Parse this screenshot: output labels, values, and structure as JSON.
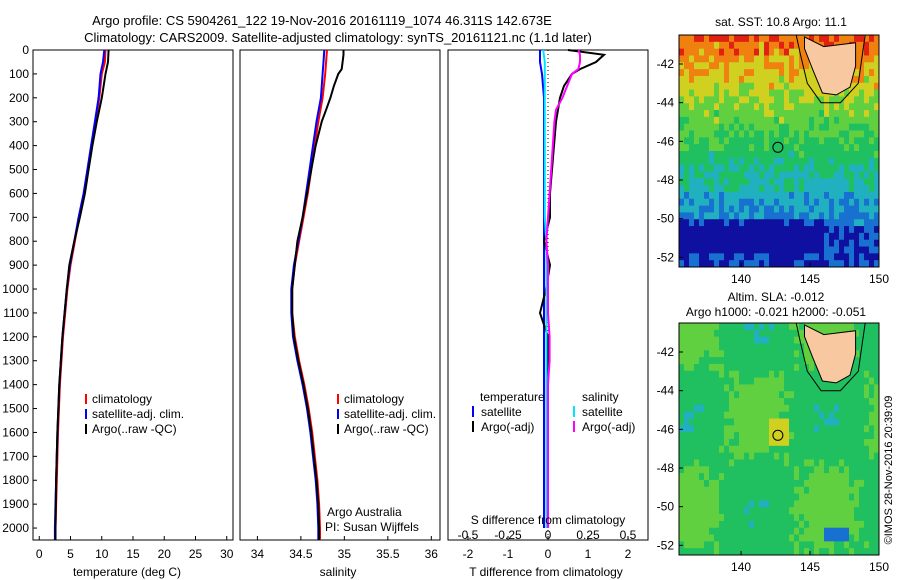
{
  "header": {
    "title_line1": "Argo profile: CS 5904261_122 19-Nov-2016 20161119_1074 46.311S 142.673E",
    "title_line2": "Climatology: CARS2009. Satellite-adjusted climatology: synTS_20161121.nc (1.1d later)"
  },
  "colors": {
    "climatology": "#ff0000",
    "satellite": "#0000ff",
    "argo": "#000000",
    "salinity_sat": "#00e5ff",
    "salinity_argo": "#ff00ff"
  },
  "depth_axis": {
    "range": [
      0,
      2050
    ],
    "ticks": [
      "0",
      "100",
      "200",
      "300",
      "400",
      "500",
      "600",
      "700",
      "800",
      "900",
      "1000",
      "1100",
      "1200",
      "1300",
      "1400",
      "1500",
      "1600",
      "1700",
      "1800",
      "1900",
      "2000"
    ]
  },
  "temp_panel": {
    "xlabel": "temperature (deg C)",
    "xlim": [
      -1,
      31
    ],
    "xticks": [
      "0",
      "5",
      "10",
      "15",
      "20",
      "25",
      "30"
    ],
    "legend": [
      "climatology",
      "satellite-adj. clim.",
      "Argo(..raw -QC)"
    ]
  },
  "sal_panel": {
    "xlabel": "salinity",
    "xlim": [
      33.8,
      36.1
    ],
    "xticks": [
      "34",
      "34.5",
      "35",
      "35.5",
      "36"
    ],
    "legend": [
      "climatology",
      "satellite-adj. clim.",
      "Argo(..raw -QC)"
    ],
    "annotation_line1": "Argo Australia",
    "annotation_line2": "PI: Susan Wijffels"
  },
  "diff_panel": {
    "xlabel_bottom": "T difference from climatology",
    "xlabel_top": "S difference from climatology",
    "xlim": [
      -2.5,
      2.5
    ],
    "xticks_bottom": [
      "-2",
      "-1",
      "0",
      "1",
      "2"
    ],
    "xticks_top": [
      "-0.5",
      "-0.25",
      "0",
      "0.25",
      "0.5"
    ],
    "legend_temp_title": "temperature",
    "legend_sal_title": "salinity",
    "legend_temp": [
      "satellite",
      "Argo(-adj)"
    ],
    "legend_sal": [
      "satellite",
      "Argo(-adj)"
    ]
  },
  "sst_map": {
    "title": "sat. SST: 10.8  Argo: 11.1",
    "lon_range": [
      135.5,
      150
    ],
    "lat_range": [
      -52.5,
      -40.5
    ],
    "xticks": [
      "140",
      "145",
      "150"
    ],
    "yticks": [
      "-42",
      "-44",
      "-46",
      "-48",
      "-50",
      "-52"
    ],
    "float_lon": 142.67,
    "float_lat": -46.31
  },
  "sla_map": {
    "title_line1": "Altim. SLA: -0.012",
    "title_line2": "Argo h1000: -0.021  h2000: -0.051",
    "lon_range": [
      135.5,
      150
    ],
    "lat_range": [
      -52.5,
      -40.5
    ],
    "xticks": [
      "140",
      "145",
      "150"
    ],
    "yticks": [
      "-42",
      "-44",
      "-46",
      "-48",
      "-50",
      "-52"
    ],
    "float_lon": 142.67,
    "float_lat": -46.31
  },
  "watermark": "©IMOS 28-Nov-2016 20:39:09",
  "chart_data": [
    {
      "type": "line",
      "title": "",
      "xlabel": "temperature (deg C)",
      "ylabel": "",
      "xlim": [
        -1,
        31
      ],
      "ylim": [
        2050,
        0
      ],
      "series": [
        {
          "name": "climatology",
          "depth": [
            0,
            50,
            100,
            200,
            300,
            400,
            500,
            600,
            700,
            800,
            900,
            1000,
            1200,
            1400,
            1600,
            1800,
            2000,
            2050
          ],
          "values": [
            10.6,
            10.5,
            10.0,
            9.6,
            9.0,
            8.4,
            7.8,
            7.2,
            6.4,
            5.7,
            5.0,
            4.5,
            3.8,
            3.3,
            3.0,
            2.8,
            2.6,
            2.6
          ]
        },
        {
          "name": "satellite-adj. clim.",
          "depth": [
            0,
            50,
            100,
            200,
            300,
            400,
            500,
            600,
            700,
            800,
            900,
            1000,
            1200,
            1400,
            1600,
            1800,
            2000,
            2050
          ],
          "values": [
            10.4,
            10.2,
            9.8,
            9.5,
            8.9,
            8.3,
            7.7,
            7.1,
            6.3,
            5.6,
            4.9,
            4.4,
            3.7,
            3.2,
            2.9,
            2.7,
            2.5,
            2.5
          ]
        },
        {
          "name": "Argo(..raw -QC)",
          "depth": [
            0,
            50,
            100,
            200,
            300,
            400,
            500,
            600,
            700,
            800,
            900,
            1000,
            1200,
            1400,
            1600,
            1800,
            2000,
            2050
          ],
          "values": [
            11.1,
            11.0,
            10.6,
            10.0,
            9.2,
            8.5,
            7.9,
            7.3,
            6.5,
            5.6,
            4.8,
            4.4,
            3.7,
            3.2,
            2.9,
            2.7,
            2.6,
            2.6
          ]
        }
      ]
    },
    {
      "type": "line",
      "title": "",
      "xlabel": "salinity",
      "ylabel": "",
      "xlim": [
        33.8,
        36.1
      ],
      "ylim": [
        2050,
        0
      ],
      "series": [
        {
          "name": "climatology",
          "depth": [
            0,
            50,
            100,
            200,
            300,
            400,
            500,
            600,
            700,
            800,
            900,
            1000,
            1100,
            1200,
            1300,
            1400,
            1500,
            1600,
            1700,
            1800,
            1900,
            2000,
            2050
          ],
          "values": [
            34.8,
            34.79,
            34.78,
            34.75,
            34.7,
            34.66,
            34.62,
            34.58,
            34.53,
            34.48,
            34.43,
            34.4,
            34.4,
            34.43,
            34.48,
            34.54,
            34.59,
            34.63,
            34.66,
            34.69,
            34.71,
            34.72,
            34.72
          ]
        },
        {
          "name": "satellite-adj. clim.",
          "depth": [
            0,
            50,
            100,
            200,
            300,
            400,
            500,
            600,
            700,
            800,
            900,
            1000,
            1100,
            1200,
            1300,
            1400,
            1500,
            1600,
            1700,
            1800,
            1900,
            2000,
            2050
          ],
          "values": [
            34.77,
            34.76,
            34.75,
            34.73,
            34.68,
            34.64,
            34.6,
            34.56,
            34.52,
            34.47,
            34.42,
            34.39,
            34.39,
            34.41,
            34.46,
            34.52,
            34.57,
            34.61,
            34.64,
            34.67,
            34.69,
            34.7,
            34.7
          ]
        },
        {
          "name": "Argo(..raw -QC)",
          "depth": [
            0,
            20,
            50,
            80,
            100,
            150,
            200,
            250,
            300,
            400,
            500,
            600,
            700,
            800,
            900,
            1000,
            1100,
            1200,
            1300,
            1400,
            1500,
            1600,
            1700,
            1800,
            1900,
            2000,
            2050
          ],
          "values": [
            34.99,
            34.99,
            34.98,
            34.97,
            34.93,
            34.88,
            34.84,
            34.79,
            34.74,
            34.67,
            34.62,
            34.57,
            34.52,
            34.46,
            34.43,
            34.4,
            34.4,
            34.42,
            34.47,
            34.53,
            34.58,
            34.62,
            34.65,
            34.68,
            34.7,
            34.71,
            34.71
          ]
        }
      ]
    },
    {
      "type": "line",
      "title": "",
      "xlabel": "T difference from climatology",
      "ylabel": "",
      "xlim": [
        -2.5,
        2.5
      ],
      "ylim": [
        2050,
        0
      ],
      "series": [
        {
          "name": "temperature satellite",
          "depth": [
            0,
            50,
            100,
            200,
            300,
            400,
            500,
            600,
            700,
            800,
            900,
            1000,
            1200,
            1400,
            1600,
            1800,
            2000
          ],
          "values": [
            -0.2,
            -0.2,
            -0.15,
            -0.1,
            -0.1,
            -0.1,
            -0.1,
            -0.1,
            -0.1,
            -0.1,
            -0.1,
            -0.1,
            -0.1,
            -0.1,
            -0.1,
            -0.1,
            -0.1
          ]
        },
        {
          "name": "temperature Argo(-adj)",
          "depth": [
            0,
            20,
            50,
            80,
            100,
            150,
            200,
            300,
            400,
            500,
            600,
            700,
            800,
            900,
            1000,
            1100,
            1200,
            1300,
            1400,
            1600,
            1800,
            2000
          ],
          "values": [
            0.5,
            1.4,
            1.2,
            0.8,
            0.6,
            0.4,
            0.3,
            0.2,
            0.15,
            0.1,
            0.05,
            0.05,
            -0.1,
            0.05,
            -0.05,
            -0.2,
            0.0,
            0.0,
            0.0,
            0.0,
            0.0,
            0.0
          ]
        },
        {
          "name": "salinity satellite",
          "depth": [
            0,
            50,
            100,
            200,
            300,
            400,
            500,
            600,
            700,
            800,
            900,
            1000,
            1200,
            1400,
            1600,
            1800,
            2000
          ],
          "values": [
            -0.03,
            -0.02,
            -0.02,
            -0.02,
            -0.02,
            -0.02,
            -0.02,
            -0.02,
            -0.02,
            -0.01,
            -0.01,
            -0.01,
            -0.01,
            -0.01,
            -0.01,
            -0.01,
            -0.01
          ]
        },
        {
          "name": "salinity Argo(-adj)",
          "depth": [
            0,
            20,
            50,
            80,
            100,
            150,
            200,
            250,
            300,
            400,
            500,
            600,
            700,
            800,
            900,
            1000,
            1100,
            1200,
            1300,
            1400,
            1600,
            1800,
            2000
          ],
          "values": [
            0.19,
            0.2,
            0.2,
            0.19,
            0.15,
            0.12,
            0.09,
            0.05,
            0.04,
            0.03,
            0.02,
            0.01,
            0.0,
            -0.01,
            0.0,
            0.0,
            0.0,
            0.01,
            0.01,
            0.0,
            0.0,
            0.0,
            0.0
          ]
        }
      ]
    }
  ]
}
